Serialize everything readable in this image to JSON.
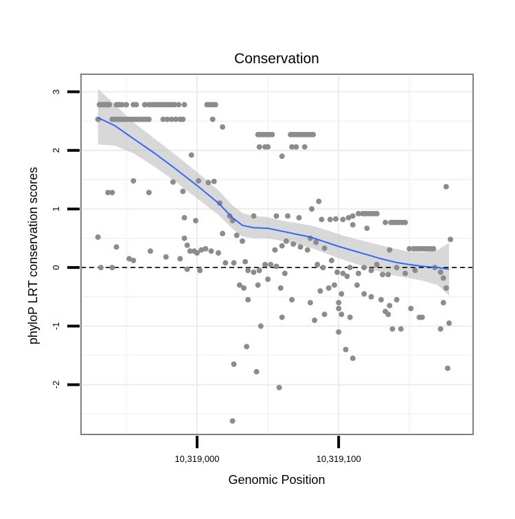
{
  "chart_data": {
    "type": "scatter",
    "title": "Conservation",
    "xlabel": "Genomic Position",
    "ylabel": "phyloP LRT conservation scores",
    "xlim": [
      10318918,
      10319195
    ],
    "ylim": [
      -2.85,
      3.3
    ],
    "x_ticks": [
      10319000,
      10319100
    ],
    "x_tick_labels": [
      "10,319,000",
      "10,319,100"
    ],
    "y_ticks": [
      -2,
      -1,
      0,
      1,
      2,
      3
    ],
    "y_tick_labels": [
      "-2",
      "-1",
      "0",
      "1",
      "2",
      "3"
    ],
    "grid": true,
    "reference_line": {
      "y": 0,
      "style": "dashed"
    },
    "colors": {
      "points": "#8c8c8c",
      "smooth_line": "#3366ff",
      "confidence_band": "#bebebe",
      "grid": "#ececec",
      "panel_border": "#7f7f7f",
      "reference_line": "#000000"
    },
    "points": [
      [
        10318931,
        2.78
      ],
      [
        10318932,
        2.78
      ],
      [
        10318933,
        2.78
      ],
      [
        10318934,
        2.78
      ],
      [
        10318935,
        2.78
      ],
      [
        10318936,
        2.78
      ],
      [
        10318937,
        2.78
      ],
      [
        10318938,
        2.78
      ],
      [
        10318943,
        2.78
      ],
      [
        10318945,
        2.78
      ],
      [
        10318947,
        2.78
      ],
      [
        10318950,
        2.78
      ],
      [
        10318955,
        2.78
      ],
      [
        10318957,
        2.78
      ],
      [
        10318963,
        2.78
      ],
      [
        10318966,
        2.78
      ],
      [
        10318968,
        2.78
      ],
      [
        10318970,
        2.78
      ],
      [
        10318972,
        2.78
      ],
      [
        10318974,
        2.78
      ],
      [
        10318976,
        2.78
      ],
      [
        10318978,
        2.78
      ],
      [
        10318980,
        2.78
      ],
      [
        10318982,
        2.78
      ],
      [
        10318984,
        2.78
      ],
      [
        10318987,
        2.78
      ],
      [
        10318991,
        2.78
      ],
      [
        10319007,
        2.78
      ],
      [
        10319009,
        2.78
      ],
      [
        10319011,
        2.78
      ],
      [
        10319013,
        2.78
      ],
      [
        10318930,
        2.53
      ],
      [
        10318940,
        2.53
      ],
      [
        10318942,
        2.53
      ],
      [
        10318944,
        2.53
      ],
      [
        10318946,
        2.53
      ],
      [
        10318948,
        2.53
      ],
      [
        10318950,
        2.53
      ],
      [
        10318952,
        2.53
      ],
      [
        10318954,
        2.53
      ],
      [
        10318956,
        2.53
      ],
      [
        10318958,
        2.53
      ],
      [
        10318960,
        2.53
      ],
      [
        10318962,
        2.53
      ],
      [
        10318964,
        2.53
      ],
      [
        10318966,
        2.53
      ],
      [
        10318976,
        2.53
      ],
      [
        10318979,
        2.53
      ],
      [
        10318982,
        2.53
      ],
      [
        10318985,
        2.53
      ],
      [
        10318988,
        2.53
      ],
      [
        10318990,
        2.53
      ],
      [
        10319011,
        2.53
      ],
      [
        10319018,
        2.4
      ],
      [
        10319043,
        2.27
      ],
      [
        10319045,
        2.27
      ],
      [
        10319047,
        2.27
      ],
      [
        10319049,
        2.27
      ],
      [
        10319051,
        2.27
      ],
      [
        10319053,
        2.27
      ],
      [
        10319066,
        2.27
      ],
      [
        10319068,
        2.27
      ],
      [
        10319070,
        2.27
      ],
      [
        10319072,
        2.27
      ],
      [
        10319074,
        2.27
      ],
      [
        10319076,
        2.27
      ],
      [
        10319078,
        2.27
      ],
      [
        10319080,
        2.27
      ],
      [
        10319082,
        2.27
      ],
      [
        10319044,
        2.06
      ],
      [
        10319048,
        2.06
      ],
      [
        10319050,
        2.06
      ],
      [
        10319067,
        2.06
      ],
      [
        10319070,
        2.06
      ],
      [
        10319076,
        2.06
      ],
      [
        10319060,
        1.9
      ],
      [
        10318996,
        1.92
      ],
      [
        10318983,
        1.46
      ],
      [
        10318955,
        1.48
      ],
      [
        10318937,
        1.28
      ],
      [
        10318940,
        1.28
      ],
      [
        10318966,
        1.28
      ],
      [
        10318990,
        1.3
      ],
      [
        10319001,
        1.48
      ],
      [
        10319008,
        1.45
      ],
      [
        10319012,
        1.47
      ],
      [
        10319016,
        1.1
      ],
      [
        10319086,
        1.13
      ],
      [
        10319081,
        1.0
      ],
      [
        10319040,
        0.88
      ],
      [
        10319056,
        0.88
      ],
      [
        10319064,
        0.88
      ],
      [
        10319072,
        0.85
      ],
      [
        10319088,
        0.82
      ],
      [
        10319094,
        0.82
      ],
      [
        10319098,
        0.83
      ],
      [
        10319103,
        0.82
      ],
      [
        10319107,
        0.85
      ],
      [
        10319110,
        0.88
      ],
      [
        10319114,
        0.92
      ],
      [
        10319117,
        0.92
      ],
      [
        10319119,
        0.92
      ],
      [
        10319121,
        0.92
      ],
      [
        10319123,
        0.92
      ],
      [
        10319125,
        0.92
      ],
      [
        10319127,
        0.92
      ],
      [
        10319133,
        0.77
      ],
      [
        10319137,
        0.77
      ],
      [
        10319139,
        0.77
      ],
      [
        10319141,
        0.77
      ],
      [
        10319143,
        0.77
      ],
      [
        10319145,
        0.77
      ],
      [
        10319147,
        0.77
      ],
      [
        10319120,
        0.67
      ],
      [
        10319110,
        0.73
      ],
      [
        10318991,
        0.85
      ],
      [
        10318999,
        0.8
      ],
      [
        10319023,
        0.88
      ],
      [
        10319025,
        0.8
      ],
      [
        10319080,
        0.5
      ],
      [
        10319084,
        0.43
      ],
      [
        10319090,
        0.33
      ],
      [
        10319018,
        0.58
      ],
      [
        10319028,
        0.55
      ],
      [
        10319032,
        0.45
      ],
      [
        10319063,
        0.45
      ],
      [
        10319060,
        0.37
      ],
      [
        10319055,
        0.3
      ],
      [
        10319068,
        0.4
      ],
      [
        10319073,
        0.35
      ],
      [
        10319078,
        0.3
      ],
      [
        10319136,
        0.3
      ],
      [
        10319150,
        0.32
      ],
      [
        10319153,
        0.32
      ],
      [
        10319155,
        0.32
      ],
      [
        10319157,
        0.32
      ],
      [
        10319159,
        0.32
      ],
      [
        10319161,
        0.32
      ],
      [
        10319163,
        0.32
      ],
      [
        10319165,
        0.32
      ],
      [
        10319167,
        0.32
      ],
      [
        10318930,
        0.52
      ],
      [
        10318943,
        0.35
      ],
      [
        10318952,
        0.15
      ],
      [
        10318967,
        0.28
      ],
      [
        10318991,
        0.5
      ],
      [
        10318993,
        0.38
      ],
      [
        10318995,
        0.28
      ],
      [
        10318998,
        0.28
      ],
      [
        10319000,
        0.25
      ],
      [
        10319003,
        0.3
      ],
      [
        10319006,
        0.32
      ],
      [
        10319010,
        0.28
      ],
      [
        10319015,
        0.25
      ],
      [
        10318932,
        0.0
      ],
      [
        10318940,
        0.0
      ],
      [
        10318955,
        0.12
      ],
      [
        10318978,
        0.18
      ],
      [
        10318988,
        0.15
      ],
      [
        10318993,
        -0.03
      ],
      [
        10319002,
        -0.05
      ],
      [
        10319020,
        0.08
      ],
      [
        10319026,
        0.08
      ],
      [
        10319034,
        0.1
      ],
      [
        10319036,
        -0.05
      ],
      [
        10319040,
        -0.08
      ],
      [
        10319044,
        -0.05
      ],
      [
        10319048,
        0.05
      ],
      [
        10319052,
        0.05
      ],
      [
        10319056,
        0.02
      ],
      [
        10319062,
        -0.1
      ],
      [
        10319085,
        0.05
      ],
      [
        10319089,
        0.0
      ],
      [
        10319095,
        0.12
      ],
      [
        10319099,
        -0.08
      ],
      [
        10319103,
        -0.1
      ],
      [
        10319106,
        -0.15
      ],
      [
        10319108,
        0.0
      ],
      [
        10319114,
        -0.1
      ],
      [
        10319118,
        0.0
      ],
      [
        10319123,
        -0.05
      ],
      [
        10319127,
        0.05
      ],
      [
        10319131,
        -0.12
      ],
      [
        10319135,
        -0.12
      ],
      [
        10319141,
        0.0
      ],
      [
        10319147,
        -0.1
      ],
      [
        10319154,
        -0.05
      ],
      [
        10319168,
        0.0
      ],
      [
        10319172,
        -0.08
      ],
      [
        10319174,
        -0.18
      ],
      [
        10319176,
        -0.35
      ],
      [
        10319030,
        -0.3
      ],
      [
        10319033,
        -0.35
      ],
      [
        10319036,
        -0.55
      ],
      [
        10319043,
        -0.3
      ],
      [
        10319050,
        -0.2
      ],
      [
        10319059,
        -0.35
      ],
      [
        10319087,
        -0.4
      ],
      [
        10319093,
        -0.35
      ],
      [
        10319097,
        -0.3
      ],
      [
        10319102,
        -0.45
      ],
      [
        10319113,
        -0.3
      ],
      [
        10319118,
        -0.45
      ],
      [
        10319123,
        -0.5
      ],
      [
        10319130,
        -0.55
      ],
      [
        10319136,
        -0.65
      ],
      [
        10319080,
        -0.6
      ],
      [
        10319067,
        -0.55
      ],
      [
        10319100,
        -0.6
      ],
      [
        10319141,
        -0.55
      ],
      [
        10319151,
        -0.7
      ],
      [
        10319157,
        -0.85
      ],
      [
        10319159,
        -0.85
      ],
      [
        10319174,
        -0.6
      ],
      [
        10319133,
        -0.75
      ],
      [
        10319135,
        -0.8
      ],
      [
        10319100,
        -0.7
      ],
      [
        10319090,
        -0.8
      ],
      [
        10319083,
        -0.9
      ],
      [
        10319102,
        -0.8
      ],
      [
        10319108,
        -0.85
      ],
      [
        10319060,
        -0.85
      ],
      [
        10319045,
        -1.0
      ],
      [
        10319100,
        -1.1
      ],
      [
        10319138,
        -1.05
      ],
      [
        10319144,
        -1.05
      ],
      [
        10319172,
        -1.05
      ],
      [
        10319178,
        -0.95
      ],
      [
        10319035,
        -1.35
      ],
      [
        10319105,
        -1.4
      ],
      [
        10319110,
        -1.55
      ],
      [
        10319042,
        -1.78
      ],
      [
        10319026,
        -1.65
      ],
      [
        10319058,
        -2.05
      ],
      [
        10319025,
        -2.62
      ],
      [
        10319176,
        1.38
      ],
      [
        10319179,
        0.48
      ],
      [
        10319177,
        -1.72
      ]
    ],
    "smooth_line": [
      [
        10318930,
        2.56
      ],
      [
        10318942,
        2.42
      ],
      [
        10318955,
        2.2
      ],
      [
        10318970,
        1.95
      ],
      [
        10318985,
        1.68
      ],
      [
        10319000,
        1.4
      ],
      [
        10319015,
        1.1
      ],
      [
        10319025,
        0.85
      ],
      [
        10319032,
        0.72
      ],
      [
        10319040,
        0.68
      ],
      [
        10319050,
        0.67
      ],
      [
        10319060,
        0.62
      ],
      [
        10319070,
        0.57
      ],
      [
        10319080,
        0.52
      ],
      [
        10319090,
        0.44
      ],
      [
        10319100,
        0.36
      ],
      [
        10319110,
        0.29
      ],
      [
        10319120,
        0.22
      ],
      [
        10319130,
        0.15
      ],
      [
        10319140,
        0.09
      ],
      [
        10319150,
        0.05
      ],
      [
        10319160,
        0.02
      ],
      [
        10319170,
        0.0
      ],
      [
        10319178,
        -0.03
      ]
    ],
    "confidence_band": {
      "x": [
        10318930,
        10318942,
        10318955,
        10318970,
        10318985,
        10319000,
        10319015,
        10319025,
        10319032,
        10319040,
        10319050,
        10319060,
        10319070,
        10319080,
        10319090,
        10319100,
        10319110,
        10319120,
        10319130,
        10319140,
        10319150,
        10319160,
        10319170,
        10319178
      ],
      "lower": [
        2.1,
        2.08,
        1.95,
        1.72,
        1.46,
        1.18,
        0.9,
        0.66,
        0.53,
        0.5,
        0.5,
        0.45,
        0.39,
        0.34,
        0.25,
        0.16,
        0.08,
        0.0,
        -0.08,
        -0.14,
        -0.18,
        -0.23,
        -0.3,
        -0.48
      ],
      "upper": [
        3.05,
        2.78,
        2.48,
        2.2,
        1.92,
        1.63,
        1.32,
        1.06,
        0.93,
        0.88,
        0.86,
        0.8,
        0.76,
        0.72,
        0.65,
        0.57,
        0.5,
        0.44,
        0.38,
        0.32,
        0.27,
        0.26,
        0.3,
        0.42
      ]
    }
  }
}
